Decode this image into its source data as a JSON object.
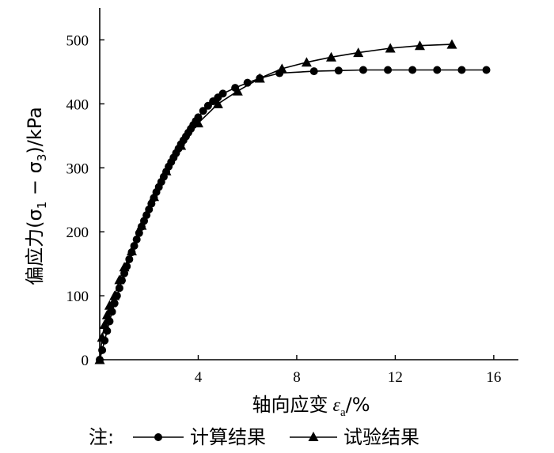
{
  "chart_data": {
    "type": "line",
    "title": "",
    "xlabel": {
      "text": "轴向应变",
      "symbol": "ε",
      "subscript": "a",
      "unit": "/%"
    },
    "ylabel": {
      "prefix": "偏应力(σ",
      "sub1": "1",
      "mid": " − σ",
      "sub2": "3",
      "suffix": ")/kPa"
    },
    "xlim": [
      0,
      17
    ],
    "ylim": [
      0,
      550
    ],
    "xticks": [
      4,
      8,
      12,
      16
    ],
    "yticks": [
      0,
      100,
      200,
      300,
      400,
      500
    ],
    "grid": false,
    "legend": {
      "position": "bottom",
      "prefix": "注:"
    },
    "series": [
      {
        "name": "计算结果",
        "marker": "circle",
        "color": "#000000",
        "x": [
          0.0,
          0.1,
          0.2,
          0.3,
          0.4,
          0.5,
          0.6,
          0.7,
          0.8,
          0.9,
          1.0,
          1.1,
          1.2,
          1.3,
          1.4,
          1.5,
          1.6,
          1.7,
          1.8,
          1.9,
          2.0,
          2.1,
          2.2,
          2.3,
          2.4,
          2.5,
          2.6,
          2.7,
          2.8,
          2.9,
          3.0,
          3.1,
          3.2,
          3.3,
          3.4,
          3.5,
          3.6,
          3.7,
          3.8,
          3.9,
          4.0,
          4.2,
          4.4,
          4.6,
          4.8,
          5.0,
          5.5,
          6.0,
          6.5,
          7.3,
          8.7,
          9.7,
          10.7,
          11.7,
          12.7,
          13.7,
          14.7,
          15.7
        ],
        "y": [
          0,
          15,
          30,
          45,
          60,
          75,
          88,
          100,
          112,
          124,
          135,
          146,
          157,
          168,
          178,
          188,
          198,
          208,
          217,
          226,
          235,
          244,
          253,
          262,
          270,
          278,
          286,
          294,
          302,
          309,
          316,
          323,
          330,
          337,
          343,
          349,
          355,
          361,
          367,
          373,
          379,
          389,
          397,
          404,
          410,
          416,
          425,
          433,
          440,
          448,
          451,
          452,
          453,
          453,
          453,
          453,
          453,
          453
        ]
      },
      {
        "name": "试验结果",
        "marker": "triangle",
        "color": "#000000",
        "x": [
          0.0,
          0.1,
          0.2,
          0.3,
          0.4,
          0.6,
          0.8,
          1.0,
          1.3,
          1.7,
          2.2,
          2.7,
          3.3,
          4.0,
          4.8,
          5.6,
          6.5,
          7.4,
          8.4,
          9.4,
          10.5,
          11.8,
          13.0,
          14.3
        ],
        "y": [
          0,
          35,
          55,
          70,
          85,
          100,
          125,
          145,
          170,
          210,
          255,
          295,
          335,
          370,
          400,
          420,
          440,
          455,
          465,
          473,
          480,
          487,
          491,
          493
        ]
      }
    ]
  }
}
